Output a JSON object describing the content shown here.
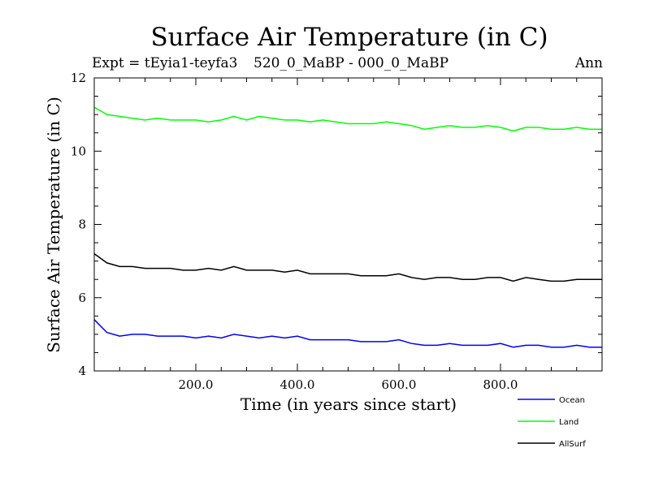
{
  "chart_data": {
    "type": "line",
    "title": "Surface Air Temperature (in C)",
    "subtitle_left": "Expt = tEyia1-teyfa3",
    "subtitle_center": "520_0_MaBP - 000_0_MaBP",
    "subtitle_right": "Ann",
    "xlabel": "Time (in years since start)",
    "ylabel": "Surface Air Temperature (in C)",
    "xlim": [
      0,
      1000
    ],
    "ylim": [
      4,
      12
    ],
    "xticks": [
      200,
      400,
      600,
      800
    ],
    "xtick_labels": [
      "200.0",
      "400.0",
      "600.0",
      "800.0"
    ],
    "yticks": [
      4,
      6,
      8,
      10,
      12
    ],
    "ytick_labels": [
      "4",
      "6",
      "8",
      "10",
      "12"
    ],
    "series": [
      {
        "name": "Ocean",
        "color": "#0000ff",
        "x": [
          0,
          25,
          50,
          75,
          100,
          125,
          150,
          175,
          200,
          225,
          250,
          275,
          300,
          325,
          350,
          375,
          400,
          425,
          450,
          475,
          500,
          525,
          550,
          575,
          600,
          625,
          650,
          675,
          700,
          725,
          750,
          775,
          800,
          825,
          850,
          875,
          900,
          925,
          950,
          975,
          1000
        ],
        "values": [
          5.4,
          5.05,
          4.95,
          5.0,
          5.0,
          4.95,
          4.95,
          4.95,
          4.9,
          4.95,
          4.9,
          5.0,
          4.95,
          4.9,
          4.95,
          4.9,
          4.95,
          4.85,
          4.85,
          4.85,
          4.85,
          4.8,
          4.8,
          4.8,
          4.85,
          4.75,
          4.7,
          4.7,
          4.75,
          4.7,
          4.7,
          4.7,
          4.75,
          4.65,
          4.7,
          4.7,
          4.65,
          4.65,
          4.7,
          4.65,
          4.65
        ]
      },
      {
        "name": "Land",
        "color": "#00ff00",
        "x": [
          0,
          25,
          50,
          75,
          100,
          125,
          150,
          175,
          200,
          225,
          250,
          275,
          300,
          325,
          350,
          375,
          400,
          425,
          450,
          475,
          500,
          525,
          550,
          575,
          600,
          625,
          650,
          675,
          700,
          725,
          750,
          775,
          800,
          825,
          850,
          875,
          900,
          925,
          950,
          975,
          1000
        ],
        "values": [
          11.2,
          11.0,
          10.95,
          10.9,
          10.85,
          10.9,
          10.85,
          10.85,
          10.85,
          10.8,
          10.85,
          10.95,
          10.85,
          10.95,
          10.9,
          10.85,
          10.85,
          10.8,
          10.85,
          10.8,
          10.75,
          10.75,
          10.75,
          10.8,
          10.75,
          10.7,
          10.6,
          10.65,
          10.7,
          10.65,
          10.65,
          10.7,
          10.65,
          10.55,
          10.65,
          10.65,
          10.6,
          10.6,
          10.65,
          10.6,
          10.6
        ]
      },
      {
        "name": "AllSurf",
        "color": "#000000",
        "x": [
          0,
          25,
          50,
          75,
          100,
          125,
          150,
          175,
          200,
          225,
          250,
          275,
          300,
          325,
          350,
          375,
          400,
          425,
          450,
          475,
          500,
          525,
          550,
          575,
          600,
          625,
          650,
          675,
          700,
          725,
          750,
          775,
          800,
          825,
          850,
          875,
          900,
          925,
          950,
          975,
          1000
        ],
        "values": [
          7.2,
          6.95,
          6.85,
          6.85,
          6.8,
          6.8,
          6.8,
          6.75,
          6.75,
          6.8,
          6.75,
          6.85,
          6.75,
          6.75,
          6.75,
          6.7,
          6.75,
          6.65,
          6.65,
          6.65,
          6.65,
          6.6,
          6.6,
          6.6,
          6.65,
          6.55,
          6.5,
          6.55,
          6.55,
          6.5,
          6.5,
          6.55,
          6.55,
          6.45,
          6.55,
          6.5,
          6.45,
          6.45,
          6.5,
          6.5,
          6.5
        ]
      }
    ]
  }
}
